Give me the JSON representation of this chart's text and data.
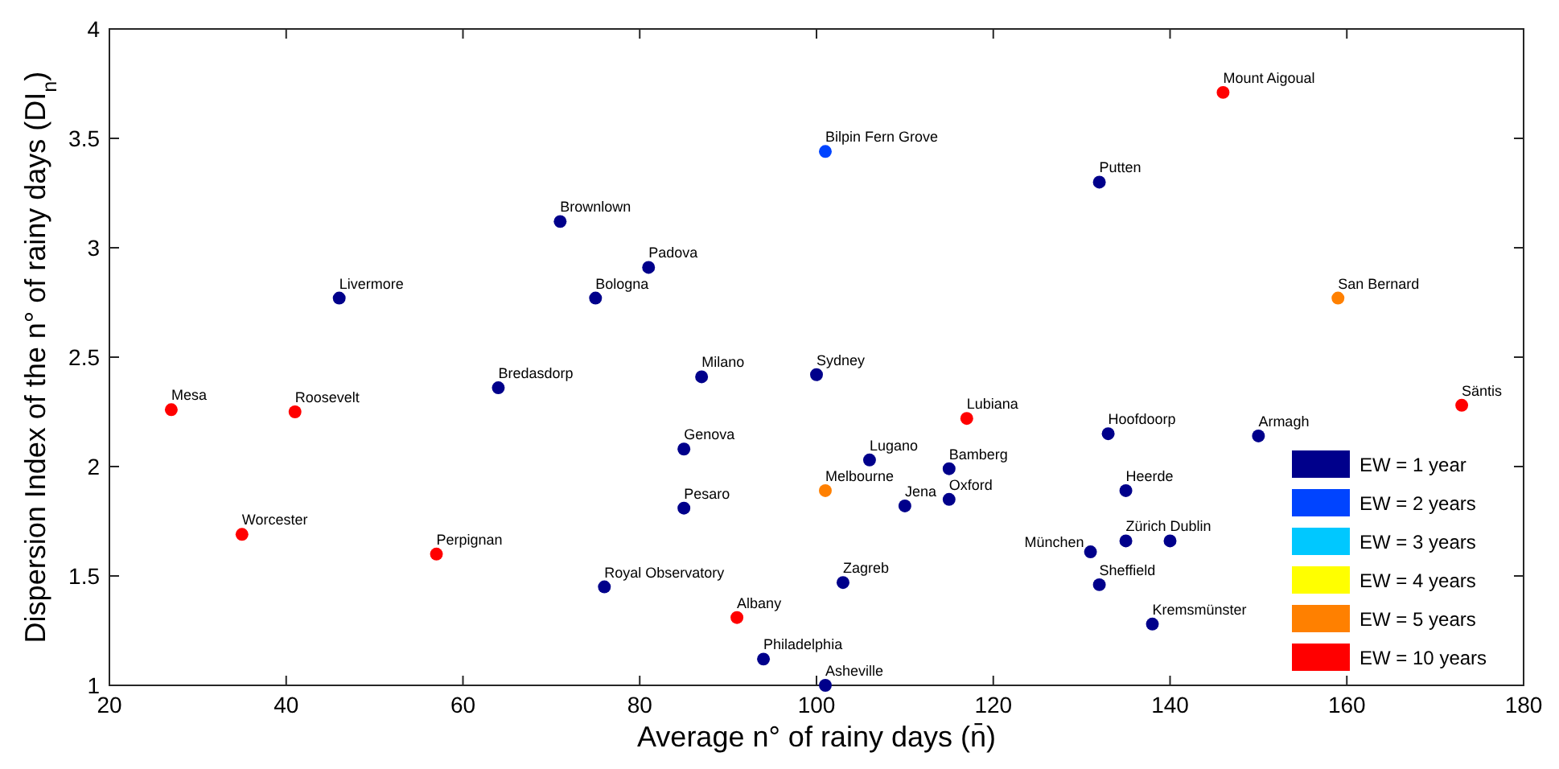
{
  "chart_data": {
    "type": "scatter",
    "xlabel": "Average n° of rainy days (n̄)",
    "ylabel": "Dispersion Index of the n° of rainy days (DI$_{n}$)",
    "xlim": [
      20,
      180
    ],
    "xticks": [
      20,
      40,
      60,
      80,
      100,
      120,
      140,
      160,
      180
    ],
    "ylim": [
      1,
      4
    ],
    "yticks": [
      1,
      1.5,
      2,
      2.5,
      3,
      3.5,
      4
    ],
    "grid": false,
    "legend": "bottom right",
    "marker": "circle",
    "series": [
      {
        "name": "EW = 1 year",
        "color": "#00008b",
        "x": [
          46,
          64,
          71,
          75,
          81,
          76,
          85,
          85,
          87,
          94,
          101,
          100,
          106,
          103,
          110,
          115,
          115,
          131,
          135,
          132,
          140,
          138,
          135,
          133,
          132,
          150
        ],
        "values": [
          2.77,
          2.36,
          3.12,
          2.77,
          2.91,
          1.45,
          2.08,
          1.81,
          2.41,
          1.12,
          1.0,
          2.42,
          2.03,
          1.47,
          1.82,
          1.99,
          1.85,
          1.61,
          1.66,
          1.46,
          1.66,
          1.28,
          1.89,
          2.15,
          3.3,
          2.14
        ]
      },
      {
        "name": "EW = 2 years",
        "color": "#0044ff",
        "x": [
          101
        ],
        "values": [
          3.44
        ]
      },
      {
        "name": "EW = 3 years",
        "color": "#00c8ff"
      },
      {
        "name": "EW = 4 years",
        "color": "#ffff00"
      },
      {
        "name": "EW = 5 years",
        "color": "#ff8000",
        "x": [
          101,
          159
        ],
        "values": [
          1.89,
          2.77
        ]
      },
      {
        "name": "EW = 10 years",
        "color": "#ff0000",
        "x": [
          27,
          41,
          35,
          57,
          91,
          117,
          146,
          173
        ],
        "values": [
          2.26,
          2.25,
          1.69,
          1.6,
          1.31,
          2.22,
          3.71,
          2.28
        ]
      }
    ],
    "annotations": [
      {
        "text": "Livermore",
        "x": 46,
        "y": 2.77
      },
      {
        "text": "Bredasdorp",
        "x": 64,
        "y": 2.36
      },
      {
        "text": "Brownlown",
        "x": 71,
        "y": 3.12
      },
      {
        "text": "Bologna",
        "x": 75,
        "y": 2.77
      },
      {
        "text": "Padova",
        "x": 81,
        "y": 2.91
      },
      {
        "text": "Royal Observatory",
        "x": 76,
        "y": 1.45
      },
      {
        "text": "Genova",
        "x": 85,
        "y": 2.08
      },
      {
        "text": "Pesaro",
        "x": 85,
        "y": 1.81
      },
      {
        "text": "Milano",
        "x": 87,
        "y": 2.41
      },
      {
        "text": "Philadelphia",
        "x": 94,
        "y": 1.12
      },
      {
        "text": "Asheville",
        "x": 101,
        "y": 1.0
      },
      {
        "text": "Sydney",
        "x": 100,
        "y": 2.42
      },
      {
        "text": "Lugano",
        "x": 106,
        "y": 2.03
      },
      {
        "text": "Zagreb",
        "x": 103,
        "y": 1.47
      },
      {
        "text": "Jena",
        "x": 110,
        "y": 1.82
      },
      {
        "text": "Bamberg",
        "x": 115,
        "y": 1.99
      },
      {
        "text": "Oxford",
        "x": 115,
        "y": 1.85
      },
      {
        "text": "München",
        "x": 131,
        "y": 1.61
      },
      {
        "text": "Zürich",
        "x": 135,
        "y": 1.66
      },
      {
        "text": "Sheffield",
        "x": 132,
        "y": 1.46
      },
      {
        "text": "Dublin",
        "x": 140,
        "y": 1.66
      },
      {
        "text": "Kremsmünster",
        "x": 138,
        "y": 1.28
      },
      {
        "text": "Heerde",
        "x": 135,
        "y": 1.89
      },
      {
        "text": "Hoofdoorp",
        "x": 133,
        "y": 2.15
      },
      {
        "text": "Putten",
        "x": 132,
        "y": 3.3
      },
      {
        "text": "Armagh",
        "x": 150,
        "y": 2.14
      },
      {
        "text": "Bilpin Fern Grove",
        "x": 101,
        "y": 3.44
      },
      {
        "text": "Melbourne",
        "x": 101,
        "y": 1.89
      },
      {
        "text": "San Bernard",
        "x": 159,
        "y": 2.77
      },
      {
        "text": "Mesa",
        "x": 27,
        "y": 2.26
      },
      {
        "text": "Roosevelt",
        "x": 41,
        "y": 2.25
      },
      {
        "text": "Worcester",
        "x": 35,
        "y": 1.69
      },
      {
        "text": "Perpignan",
        "x": 57,
        "y": 1.6
      },
      {
        "text": "Albany",
        "x": 91,
        "y": 1.31
      },
      {
        "text": "Lubiana",
        "x": 117,
        "y": 2.22
      },
      {
        "text": "Mount Aigoual",
        "x": 146,
        "y": 3.71
      },
      {
        "text": "Säntis",
        "x": 173,
        "y": 2.28
      }
    ]
  }
}
